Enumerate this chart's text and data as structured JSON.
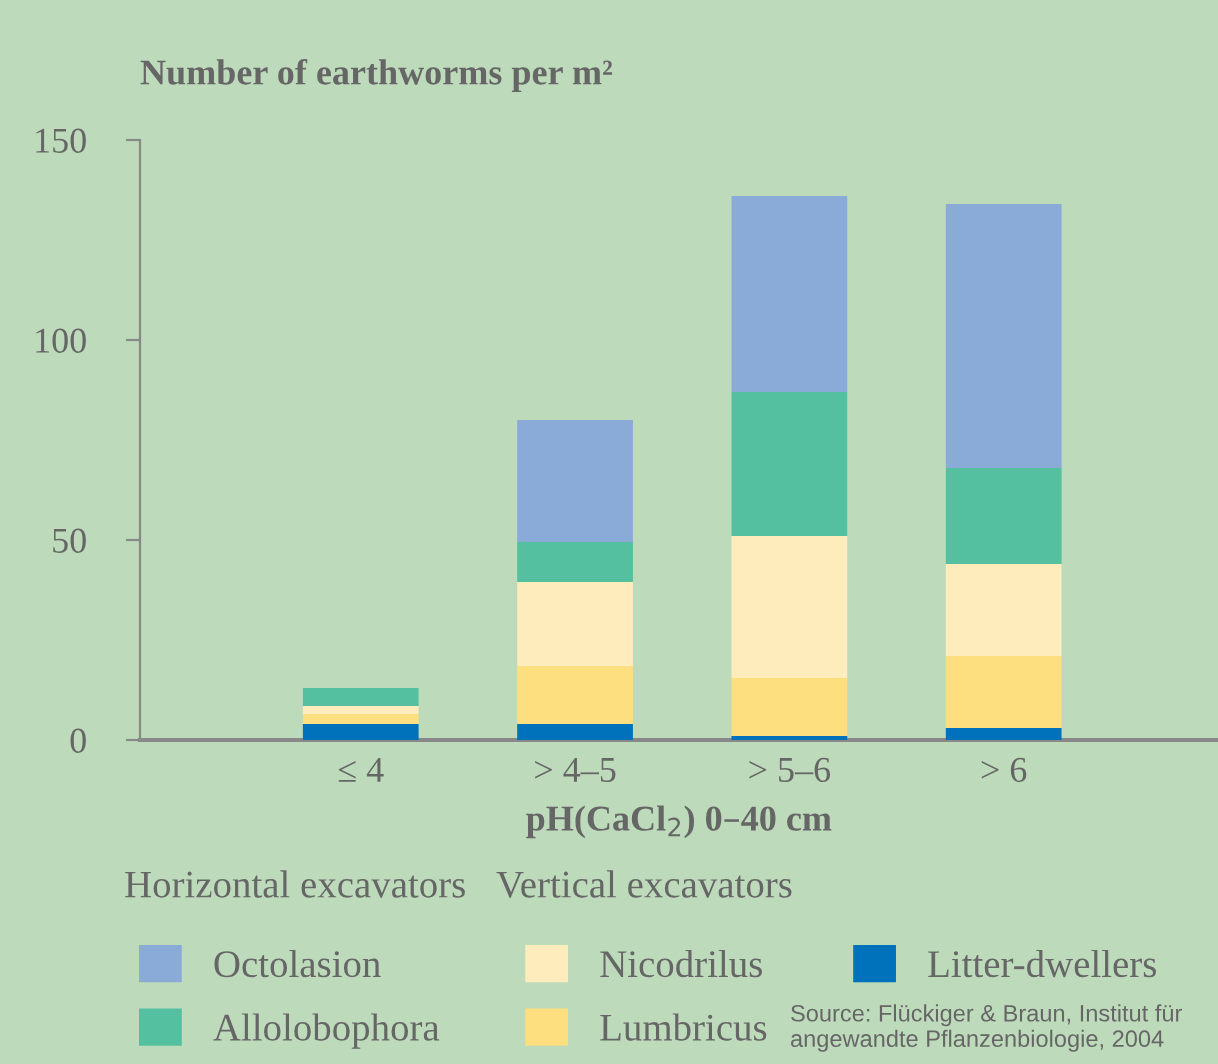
{
  "chart_data": {
    "type": "bar",
    "stacked": true,
    "ylabel": "Number of earthworms per m²",
    "xlabel": "pH(CaCl$_{2}$) 0–40 cm",
    "categories": [
      "≤ 4",
      "> 4–5",
      "> 5–6",
      "> 6"
    ],
    "series": [
      {
        "name": "Litter-dwellers",
        "color": "#0072bc",
        "values": [
          4,
          4,
          1,
          3
        ]
      },
      {
        "name": "Lumbricus",
        "color": "#fddf80",
        "values": [
          2.5,
          14.5,
          14.5,
          18
        ]
      },
      {
        "name": "Nicodrilus",
        "color": "#feecbc",
        "values": [
          2,
          21,
          35.5,
          23
        ]
      },
      {
        "name": "Allolobophora",
        "color": "#54c09f",
        "values": [
          4.5,
          10,
          36,
          24
        ]
      },
      {
        "name": "Octolasion",
        "color": "#8aaad8",
        "values": [
          0,
          30.5,
          49,
          66
        ]
      }
    ],
    "ylim": [
      0,
      150
    ],
    "yticks": [
      0,
      50,
      100,
      150
    ],
    "grid": false,
    "legend": "bottom",
    "annotations": [
      "Horizontal excavators",
      "Vertical excavators",
      "Source: Flückiger & Braun, Institut für angewandte Pflanzenbiologie, 2004"
    ]
  }
}
